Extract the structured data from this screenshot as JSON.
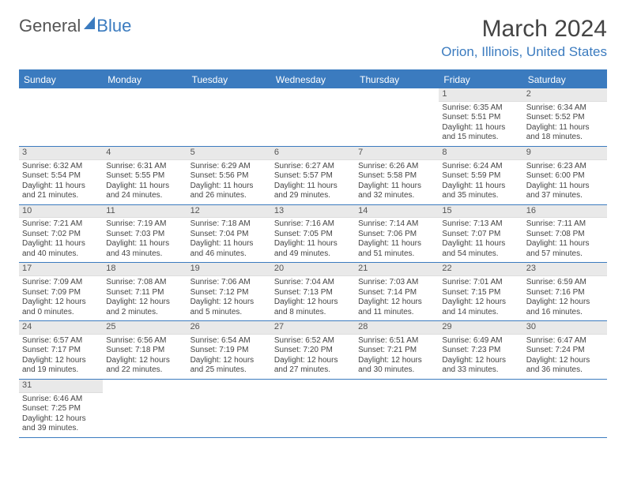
{
  "logo": {
    "part1": "General",
    "part2": "Blue"
  },
  "title": "March 2024",
  "location": "Orion, Illinois, United States",
  "headers": [
    "Sunday",
    "Monday",
    "Tuesday",
    "Wednesday",
    "Thursday",
    "Friday",
    "Saturday"
  ],
  "colors": {
    "accent": "#3b7bbf",
    "header_text": "#ffffff",
    "daynum_bg": "#e9e9e9",
    "text": "#444444"
  },
  "weeks": [
    [
      null,
      null,
      null,
      null,
      null,
      {
        "d": "1",
        "sr": "Sunrise: 6:35 AM",
        "ss": "Sunset: 5:51 PM",
        "dl": "Daylight: 11 hours and 15 minutes."
      },
      {
        "d": "2",
        "sr": "Sunrise: 6:34 AM",
        "ss": "Sunset: 5:52 PM",
        "dl": "Daylight: 11 hours and 18 minutes."
      }
    ],
    [
      {
        "d": "3",
        "sr": "Sunrise: 6:32 AM",
        "ss": "Sunset: 5:54 PM",
        "dl": "Daylight: 11 hours and 21 minutes."
      },
      {
        "d": "4",
        "sr": "Sunrise: 6:31 AM",
        "ss": "Sunset: 5:55 PM",
        "dl": "Daylight: 11 hours and 24 minutes."
      },
      {
        "d": "5",
        "sr": "Sunrise: 6:29 AM",
        "ss": "Sunset: 5:56 PM",
        "dl": "Daylight: 11 hours and 26 minutes."
      },
      {
        "d": "6",
        "sr": "Sunrise: 6:27 AM",
        "ss": "Sunset: 5:57 PM",
        "dl": "Daylight: 11 hours and 29 minutes."
      },
      {
        "d": "7",
        "sr": "Sunrise: 6:26 AM",
        "ss": "Sunset: 5:58 PM",
        "dl": "Daylight: 11 hours and 32 minutes."
      },
      {
        "d": "8",
        "sr": "Sunrise: 6:24 AM",
        "ss": "Sunset: 5:59 PM",
        "dl": "Daylight: 11 hours and 35 minutes."
      },
      {
        "d": "9",
        "sr": "Sunrise: 6:23 AM",
        "ss": "Sunset: 6:00 PM",
        "dl": "Daylight: 11 hours and 37 minutes."
      }
    ],
    [
      {
        "d": "10",
        "sr": "Sunrise: 7:21 AM",
        "ss": "Sunset: 7:02 PM",
        "dl": "Daylight: 11 hours and 40 minutes."
      },
      {
        "d": "11",
        "sr": "Sunrise: 7:19 AM",
        "ss": "Sunset: 7:03 PM",
        "dl": "Daylight: 11 hours and 43 minutes."
      },
      {
        "d": "12",
        "sr": "Sunrise: 7:18 AM",
        "ss": "Sunset: 7:04 PM",
        "dl": "Daylight: 11 hours and 46 minutes."
      },
      {
        "d": "13",
        "sr": "Sunrise: 7:16 AM",
        "ss": "Sunset: 7:05 PM",
        "dl": "Daylight: 11 hours and 49 minutes."
      },
      {
        "d": "14",
        "sr": "Sunrise: 7:14 AM",
        "ss": "Sunset: 7:06 PM",
        "dl": "Daylight: 11 hours and 51 minutes."
      },
      {
        "d": "15",
        "sr": "Sunrise: 7:13 AM",
        "ss": "Sunset: 7:07 PM",
        "dl": "Daylight: 11 hours and 54 minutes."
      },
      {
        "d": "16",
        "sr": "Sunrise: 7:11 AM",
        "ss": "Sunset: 7:08 PM",
        "dl": "Daylight: 11 hours and 57 minutes."
      }
    ],
    [
      {
        "d": "17",
        "sr": "Sunrise: 7:09 AM",
        "ss": "Sunset: 7:09 PM",
        "dl": "Daylight: 12 hours and 0 minutes."
      },
      {
        "d": "18",
        "sr": "Sunrise: 7:08 AM",
        "ss": "Sunset: 7:11 PM",
        "dl": "Daylight: 12 hours and 2 minutes."
      },
      {
        "d": "19",
        "sr": "Sunrise: 7:06 AM",
        "ss": "Sunset: 7:12 PM",
        "dl": "Daylight: 12 hours and 5 minutes."
      },
      {
        "d": "20",
        "sr": "Sunrise: 7:04 AM",
        "ss": "Sunset: 7:13 PM",
        "dl": "Daylight: 12 hours and 8 minutes."
      },
      {
        "d": "21",
        "sr": "Sunrise: 7:03 AM",
        "ss": "Sunset: 7:14 PM",
        "dl": "Daylight: 12 hours and 11 minutes."
      },
      {
        "d": "22",
        "sr": "Sunrise: 7:01 AM",
        "ss": "Sunset: 7:15 PM",
        "dl": "Daylight: 12 hours and 14 minutes."
      },
      {
        "d": "23",
        "sr": "Sunrise: 6:59 AM",
        "ss": "Sunset: 7:16 PM",
        "dl": "Daylight: 12 hours and 16 minutes."
      }
    ],
    [
      {
        "d": "24",
        "sr": "Sunrise: 6:57 AM",
        "ss": "Sunset: 7:17 PM",
        "dl": "Daylight: 12 hours and 19 minutes."
      },
      {
        "d": "25",
        "sr": "Sunrise: 6:56 AM",
        "ss": "Sunset: 7:18 PM",
        "dl": "Daylight: 12 hours and 22 minutes."
      },
      {
        "d": "26",
        "sr": "Sunrise: 6:54 AM",
        "ss": "Sunset: 7:19 PM",
        "dl": "Daylight: 12 hours and 25 minutes."
      },
      {
        "d": "27",
        "sr": "Sunrise: 6:52 AM",
        "ss": "Sunset: 7:20 PM",
        "dl": "Daylight: 12 hours and 27 minutes."
      },
      {
        "d": "28",
        "sr": "Sunrise: 6:51 AM",
        "ss": "Sunset: 7:21 PM",
        "dl": "Daylight: 12 hours and 30 minutes."
      },
      {
        "d": "29",
        "sr": "Sunrise: 6:49 AM",
        "ss": "Sunset: 7:23 PM",
        "dl": "Daylight: 12 hours and 33 minutes."
      },
      {
        "d": "30",
        "sr": "Sunrise: 6:47 AM",
        "ss": "Sunset: 7:24 PM",
        "dl": "Daylight: 12 hours and 36 minutes."
      }
    ],
    [
      {
        "d": "31",
        "sr": "Sunrise: 6:46 AM",
        "ss": "Sunset: 7:25 PM",
        "dl": "Daylight: 12 hours and 39 minutes."
      },
      null,
      null,
      null,
      null,
      null,
      null
    ]
  ]
}
